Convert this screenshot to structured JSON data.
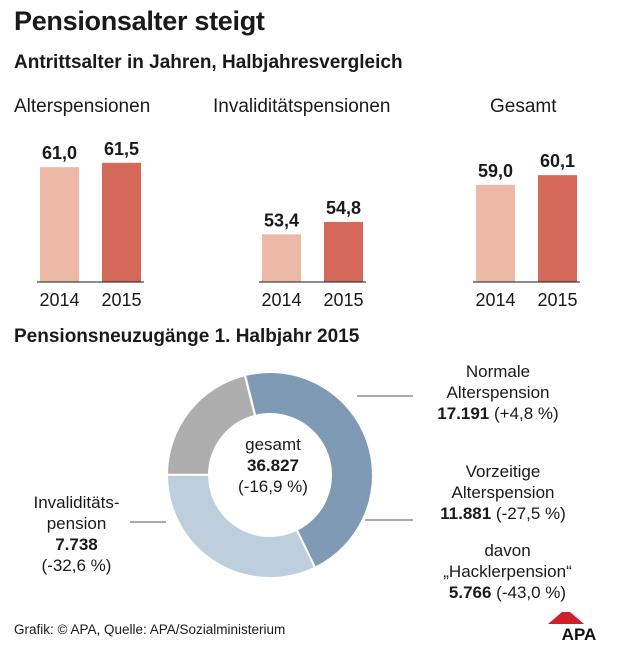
{
  "title": "Pensionsalter steigt",
  "subtitle": "Antrittsalter in Jahren, Halbjahresvergleich",
  "section2_title": "Pensionsneuzugänge 1. Halbjahr 2015",
  "footer": "Grafik: © APA, Quelle: APA/Sozialministerium",
  "logo_text": "APA",
  "colors": {
    "light": "#ebb9a6",
    "dark": "#d4695a",
    "donut_blue": "#7f9ab4",
    "donut_light": "#bfcedc",
    "donut_gray": "#aeaeae"
  },
  "chart_data": [
    {
      "type": "bar",
      "title": "Alterspensionen",
      "categories": [
        "2014",
        "2015"
      ],
      "values": [
        61.0,
        61.5
      ],
      "value_labels": [
        "61,0",
        "61,5"
      ]
    },
    {
      "type": "bar",
      "title": "Invaliditätspensionen",
      "categories": [
        "2014",
        "2015"
      ],
      "values": [
        53.4,
        54.8
      ],
      "value_labels": [
        "53,4",
        "54,8"
      ]
    },
    {
      "type": "bar",
      "title": "Gesamt",
      "categories": [
        "2014",
        "2015"
      ],
      "values": [
        59.0,
        60.1
      ],
      "value_labels": [
        "59,0",
        "60,1"
      ]
    },
    {
      "type": "pie",
      "center": {
        "line1": "gesamt",
        "line2": "36.827",
        "line3": "(-16,9 %)"
      },
      "total": 36827,
      "slices": [
        {
          "value": 17191,
          "line1": "Normale",
          "line2": "Alterspension",
          "value_label": "17.191",
          "change": " (+4,8 %)"
        },
        {
          "value": 11881,
          "line1": "Vorzeitige",
          "line2": "Alterspension",
          "value_label": "11.881",
          "change": " (-27,5 %)"
        },
        {
          "value": 7738,
          "line1": "Invaliditäts-",
          "line2": "pension",
          "value_label": "7.738",
          "change": "(-32,6 %)"
        }
      ],
      "sub_note": {
        "line1": "davon",
        "line2": "„Hacklerpension“",
        "value_label": "5.766",
        "change": " (-43,0 %)"
      }
    }
  ]
}
